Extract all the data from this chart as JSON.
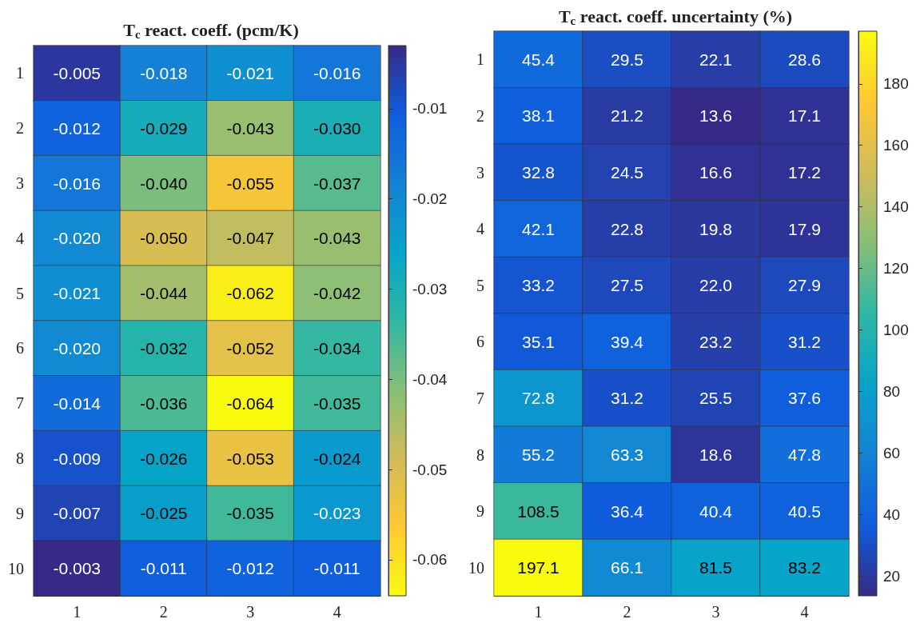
{
  "chart_data": [
    {
      "type": "heatmap",
      "title": "T$_{c}$ react. coeff. (pcm/K)",
      "categories": [
        "1",
        "2",
        "3",
        "4"
      ],
      "y_categories": [
        "1",
        "2",
        "3",
        "4",
        "5",
        "6",
        "7",
        "8",
        "9",
        "10"
      ],
      "cells": [
        [
          -0.005,
          -0.018,
          -0.021,
          -0.016
        ],
        [
          -0.012,
          -0.029,
          -0.043,
          -0.03
        ],
        [
          -0.016,
          -0.04,
          -0.055,
          -0.037
        ],
        [
          -0.02,
          -0.05,
          -0.047,
          -0.043
        ],
        [
          -0.021,
          -0.044,
          -0.062,
          -0.042
        ],
        [
          -0.02,
          -0.032,
          -0.052,
          -0.034
        ],
        [
          -0.014,
          -0.036,
          -0.064,
          -0.035
        ],
        [
          -0.009,
          -0.026,
          -0.053,
          -0.024
        ],
        [
          -0.007,
          -0.025,
          -0.035,
          -0.023
        ],
        [
          -0.003,
          -0.011,
          -0.012,
          -0.011
        ]
      ],
      "cell_labels": [
        [
          "-0.005",
          "-0.018",
          "-0.021",
          "-0.016"
        ],
        [
          "-0.012",
          "-0.029",
          "-0.043",
          "-0.030"
        ],
        [
          "-0.016",
          "-0.040",
          "-0.055",
          "-0.037"
        ],
        [
          "-0.020",
          "-0.050",
          "-0.047",
          "-0.043"
        ],
        [
          "-0.021",
          "-0.044",
          "-0.062",
          "-0.042"
        ],
        [
          "-0.020",
          "-0.032",
          "-0.052",
          "-0.034"
        ],
        [
          "-0.014",
          "-0.036",
          "-0.064",
          "-0.035"
        ],
        [
          "-0.009",
          "-0.026",
          "-0.053",
          "-0.024"
        ],
        [
          "-0.007",
          "-0.025",
          "-0.035",
          "-0.023"
        ],
        [
          "-0.003",
          "-0.011",
          "-0.012",
          "-0.011"
        ]
      ],
      "clim": [
        -0.003,
        -0.064
      ],
      "cticks": [
        -0.01,
        -0.02,
        -0.03,
        -0.04,
        -0.05,
        -0.06
      ]
    },
    {
      "type": "heatmap",
      "title": "T$_{c}$ react. coeff. uncertainty (%)",
      "categories": [
        "1",
        "2",
        "3",
        "4"
      ],
      "y_categories": [
        "1",
        "2",
        "3",
        "4",
        "5",
        "6",
        "7",
        "8",
        "9",
        "10"
      ],
      "cells": [
        [
          45.4,
          29.5,
          22.1,
          28.6
        ],
        [
          38.1,
          21.2,
          13.6,
          17.1
        ],
        [
          32.8,
          24.5,
          16.6,
          17.2
        ],
        [
          42.1,
          22.8,
          19.8,
          17.9
        ],
        [
          33.2,
          27.5,
          22.0,
          27.9
        ],
        [
          35.1,
          39.4,
          23.2,
          31.2
        ],
        [
          72.8,
          31.2,
          25.5,
          37.6
        ],
        [
          55.2,
          63.3,
          18.6,
          47.8
        ],
        [
          108.5,
          36.4,
          40.4,
          40.5
        ],
        [
          197.1,
          66.1,
          81.5,
          83.2
        ]
      ],
      "cell_labels": [
        [
          "45.4",
          "29.5",
          "22.1",
          "28.6"
        ],
        [
          "38.1",
          "21.2",
          "13.6",
          "17.1"
        ],
        [
          "32.8",
          "24.5",
          "16.6",
          "17.2"
        ],
        [
          "42.1",
          "22.8",
          "19.8",
          "17.9"
        ],
        [
          "33.2",
          "27.5",
          "22.0",
          "27.9"
        ],
        [
          "35.1",
          "39.4",
          "23.2",
          "31.2"
        ],
        [
          "72.8",
          "31.2",
          "25.5",
          "37.6"
        ],
        [
          "55.2",
          "63.3",
          "18.6",
          "47.8"
        ],
        [
          "108.5",
          "36.4",
          "40.4",
          "40.5"
        ],
        [
          "197.1",
          "66.1",
          "81.5",
          "83.2"
        ]
      ],
      "clim": [
        13.6,
        197.1
      ],
      "cticks": [
        20,
        40,
        60,
        80,
        100,
        120,
        140,
        160,
        180
      ]
    }
  ]
}
